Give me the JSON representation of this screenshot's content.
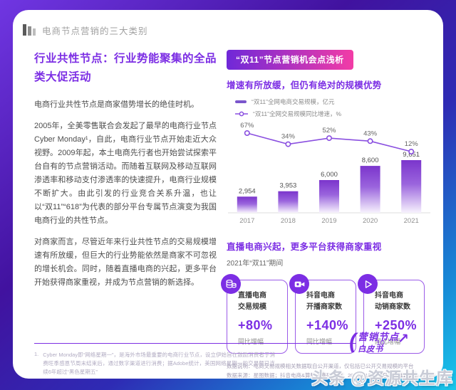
{
  "page": {
    "header": {
      "title": "电商节点营销的三大类别"
    },
    "left": {
      "heading": "行业共性节点：行业势能聚集的全品类大促活动",
      "p1": "电商行业共性节点是商家借势增长的绝佳时机。",
      "p2": "2005年，全美零售联合会发起了最早的电商行业节点Cyber Monday¹，自此，电商行业节点开始走近大众视野。2009年起，本土电商先行者也开始尝试探索平台自有的节点营销活动。而随着互联网及移动互联网渗透率和移动支付渗透率的快速提升，电商行业规模不断扩大。由此引发的行业竞合关系升温，也让以“双11”“618”为代表的部分平台专属节点演变为我国电商行业的共性节点。",
      "p3": "对商家而言，尽管近年来行业共性节点的交易规模增速有所放缓，但巨大的行业势能依然是商家不可忽视的增长机会。同时，随着直播电商的兴起，更多平台开始获得商家重视，并成为节点营销的新选择。"
    },
    "right": {
      "badge": "“双11”节点营销机会点浅析",
      "chart_heading": "增速有所放缓，但仍有绝对的规模优势",
      "legend": [
        "“双11”全网电商交易规模，亿元",
        "“双11”全网交易规模同比增速，%"
      ],
      "section2": {
        "heading": "直播电商兴起，更多平台获得商家重视",
        "subheading": "2021年“双11”期间"
      },
      "cards": [
        {
          "icon": "coins-icon",
          "line1": "直播电商",
          "line2": "交易规模",
          "value": "+80%",
          "caption": "同比增幅"
        },
        {
          "icon": "video-camera-icon",
          "line1": "抖音电商",
          "line2": "开播商家数",
          "value": "+140%",
          "caption": "同比增幅"
        },
        {
          "icon": "play-icon",
          "line1": "抖音电商",
          "line2": "动销商家数",
          "value": "+250%",
          "caption": "同比增幅"
        }
      ],
      "notes": [
        "数据说明：电商交易规模相关数据取自公开渠道，仅包括已公开交易规模的平台",
        "数据来源：星图数据；抖音电商&算数电商研究院，2021年10月27日-11月11日"
      ]
    },
    "footer": {
      "page_number": "10",
      "footnote_index": "1.",
      "footnote": "Cyber Monday即“网络星期一”，是海外市场最重要的电商行业节点，设立伊始旨在鼓励消费者于消费旺季感恩节周末结束后，通过数字渠道进行消费；据Adobe统计，美国网络星期一的交易额已连续6年超过“黑色星期五”",
      "logo_line1": "营销节点",
      "logo_line2": "白皮书",
      "watermark": "头条 @资源共生库"
    },
    "colors": {
      "accent": "#7c2ee4",
      "badge_from": "#6f28d8",
      "badge_to": "#f23ca6",
      "line": "#8a4fe0",
      "bar_top": "#7b35cc"
    }
  },
  "chart_data": {
    "type": "bar",
    "title": "增速有所放缓，但仍有绝对的规模优势",
    "categories": [
      "2017",
      "2018",
      "2019",
      "2020",
      "2021"
    ],
    "series": [
      {
        "name": "“双11”全网电商交易规模，亿元",
        "type": "bar",
        "values": [
          2954,
          3953,
          6000,
          8600,
          9651
        ],
        "labels": [
          "2,954",
          "3,953",
          "6,000",
          "8,600",
          "9,651"
        ]
      },
      {
        "name": "“双11”全网交易规模同比增速，%",
        "type": "line",
        "values": [
          67,
          34,
          52,
          43,
          12
        ],
        "labels": [
          "67%",
          "34%",
          "52%",
          "43%",
          "12%"
        ]
      }
    ],
    "xlabel": "",
    "ylabel": "",
    "ylim": [
      0,
      10000
    ],
    "y2lim": [
      0,
      70
    ],
    "grid": false,
    "legend_position": "top"
  }
}
